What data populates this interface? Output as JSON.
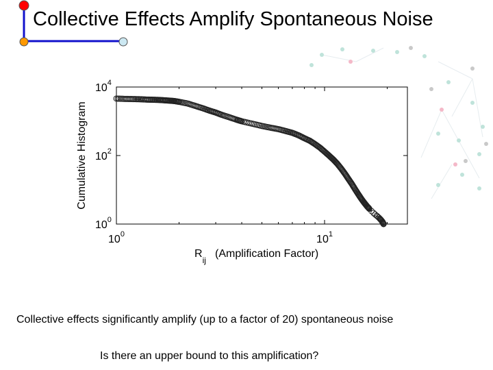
{
  "slide": {
    "title": "Collective Effects Amplify Spontaneous Noise",
    "caption": "Collective effects significantly amplify (up to a factor of 20) spontaneous noise",
    "question": "Is there an upper bound to this amplification?",
    "colors": {
      "node_top": "#ff0000",
      "node_bottom": "#ff9900",
      "node_right": "#cce8f2",
      "frame": "#1111cc"
    }
  },
  "chart_data": {
    "type": "scatter",
    "title": "",
    "xlabel": "(Amplification Factor)",
    "xlabel_symbol": "R",
    "xlabel_subscript": "ij",
    "ylabel": "Cumulative Histogram",
    "x_scale": "log",
    "y_scale": "log",
    "xlim": [
      1,
      25
    ],
    "ylim": [
      1,
      10000
    ],
    "x_ticks": [
      {
        "base": "10",
        "exp": "0",
        "value": 1
      },
      {
        "base": "10",
        "exp": "1",
        "value": 10
      }
    ],
    "y_ticks": [
      {
        "base": "10",
        "exp": "0",
        "value": 1
      },
      {
        "base": "10",
        "exp": "2",
        "value": 100
      },
      {
        "base": "10",
        "exp": "4",
        "value": 10000
      }
    ],
    "grid": false,
    "marker": "open circle",
    "series": [
      {
        "x": [
          1.0,
          1.1,
          1.2,
          1.3,
          1.4,
          1.5,
          1.6,
          1.7,
          1.8,
          1.9,
          2.0,
          2.2,
          2.4,
          2.6,
          2.8,
          3.0,
          3.2,
          3.5,
          3.8,
          4.0,
          4.5,
          5.0,
          5.5,
          6.0,
          6.5,
          7.0,
          7.5,
          8.0,
          8.5,
          9.0,
          9.5,
          10.0,
          10.5,
          11.0,
          11.5,
          12.0,
          12.5,
          13.0,
          13.5,
          14.0,
          14.5,
          15.0,
          15.5,
          16.0,
          16.4,
          16.8,
          17.2,
          17.5,
          17.8,
          18.0,
          18.2,
          18.4,
          18.5,
          18.6,
          18.7,
          18.8,
          18.9,
          19.0,
          19.0,
          19.1,
          19.2,
          19.2,
          19.2
        ],
        "y": [
          4600,
          4500,
          4450,
          4400,
          4300,
          4250,
          4200,
          4100,
          4000,
          3900,
          3700,
          3300,
          2800,
          2400,
          2050,
          1800,
          1550,
          1300,
          1100,
          1000,
          850,
          730,
          650,
          590,
          520,
          460,
          390,
          320,
          270,
          215,
          170,
          130,
          100,
          77,
          58,
          42,
          30,
          21,
          15,
          10.5,
          7.5,
          5.5,
          4.2,
          3.3,
          2.8,
          2.4,
          2.1,
          1.9,
          1.75,
          1.65,
          1.55,
          1.45,
          1.4,
          1.35,
          1.3,
          1.25,
          1.2,
          1.15,
          1.1,
          1.06,
          1.03,
          1.01,
          1.0
        ]
      }
    ]
  }
}
